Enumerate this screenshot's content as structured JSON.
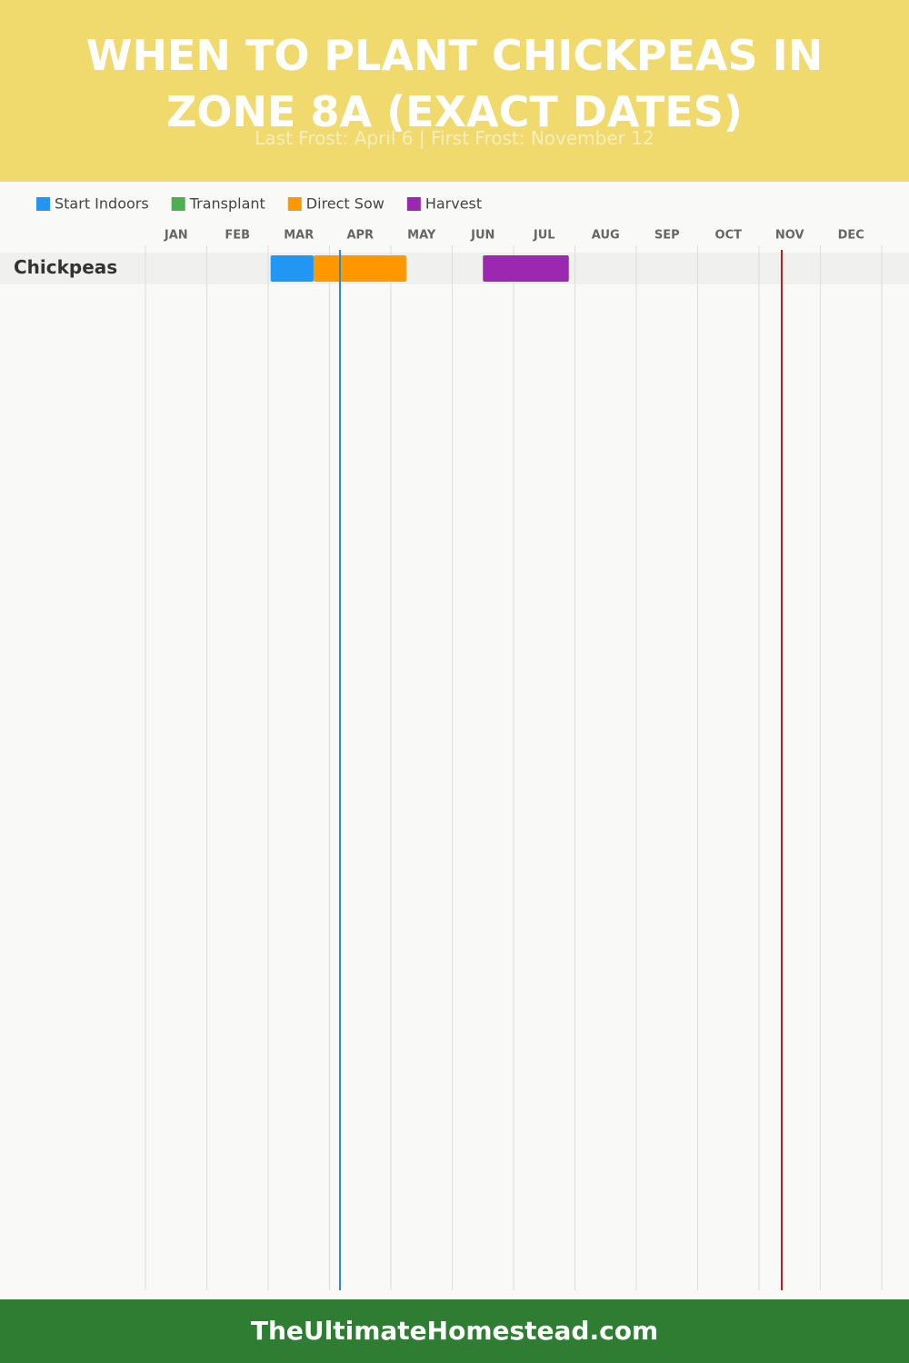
{
  "chart_data": {
    "type": "gantt",
    "title": "When to Plant Chickpeas in Zone 8a (Exact Dates)",
    "subtitle": "Last Frost: April 6 | First Frost: November 12",
    "footer": "TheUltimateHomestead.com",
    "categories": [
      "Chickpeas"
    ],
    "xlim": [
      0,
      12
    ],
    "xticks": [
      {
        "value": 0,
        "label": "JAN"
      },
      {
        "value": 1,
        "label": "FEB"
      },
      {
        "value": 2,
        "label": "MAR"
      },
      {
        "value": 3,
        "label": "APR"
      },
      {
        "value": 4,
        "label": "MAY"
      },
      {
        "value": 5,
        "label": "JUN"
      },
      {
        "value": 6,
        "label": "JUL"
      },
      {
        "value": 7,
        "label": "AUG"
      },
      {
        "value": 8,
        "label": "SEP"
      },
      {
        "value": 9,
        "label": "OCT"
      },
      {
        "value": 10,
        "label": "NOV"
      },
      {
        "value": 11,
        "label": "DEC"
      }
    ],
    "grid": true,
    "series": [
      {
        "name": "Start Indoors",
        "color": "#2196f3",
        "values": [
          [
            2.04,
            2.74
          ]
        ]
      },
      {
        "name": "Transplant",
        "color": "#4caf50",
        "values": [
          null
        ]
      },
      {
        "name": "Direct Sow",
        "color": "#ff9800",
        "values": [
          [
            2.74,
            4.25
          ]
        ]
      },
      {
        "name": "Harvest",
        "color": "#9c27b0",
        "values": [
          [
            5.5,
            6.9
          ]
        ]
      }
    ],
    "frost_lines": [
      {
        "value": 3.17,
        "color": "#2a8ad6"
      },
      {
        "value": 10.37,
        "color": "#b22222"
      }
    ]
  }
}
